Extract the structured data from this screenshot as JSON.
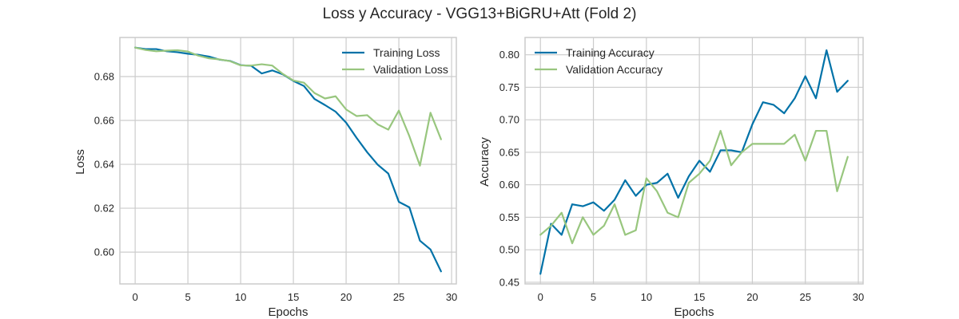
{
  "figure": {
    "title": "Loss y Accuracy - VGG13+BiGRU+Att (Fold 2)"
  },
  "colors": {
    "training": "#0072a8",
    "validation": "#98c67e",
    "grid": "#cccccc",
    "background": "#ffffff"
  },
  "chart_data": [
    {
      "type": "line",
      "title": "",
      "xlabel": "Epochs",
      "ylabel": "Loss",
      "xlim": [
        -1.45,
        30.45
      ],
      "ylim": [
        0.5855,
        0.6978
      ],
      "xticks": [
        0,
        5,
        10,
        15,
        20,
        25,
        30
      ],
      "xtick_labels": [
        "0",
        "5",
        "10",
        "15",
        "20",
        "25",
        "30"
      ],
      "yticks": [
        0.6,
        0.62,
        0.64,
        0.66,
        0.68
      ],
      "ytick_labels": [
        "0.60",
        "0.62",
        "0.64",
        "0.66",
        "0.68"
      ],
      "grid": true,
      "legend_position": "top-right",
      "x": [
        0,
        1,
        2,
        3,
        4,
        5,
        6,
        7,
        8,
        9,
        10,
        11,
        12,
        13,
        14,
        15,
        16,
        17,
        18,
        19,
        20,
        21,
        22,
        23,
        24,
        25,
        26,
        27,
        28,
        29
      ],
      "series": [
        {
          "name": "Training Loss",
          "color": "#0072a8",
          "values": [
            0.6932,
            0.6925,
            0.6925,
            0.6915,
            0.6911,
            0.6904,
            0.6899,
            0.6891,
            0.6877,
            0.6871,
            0.6852,
            0.6849,
            0.6814,
            0.6828,
            0.681,
            0.678,
            0.6757,
            0.6698,
            0.667,
            0.664,
            0.659,
            0.652,
            0.6455,
            0.6398,
            0.6358,
            0.6229,
            0.6204,
            0.6052,
            0.6012,
            0.5912
          ]
        },
        {
          "name": "Validation Loss",
          "color": "#98c67e",
          "values": [
            0.6932,
            0.6921,
            0.6915,
            0.6918,
            0.692,
            0.6914,
            0.6895,
            0.6883,
            0.6878,
            0.687,
            0.6851,
            0.685,
            0.6856,
            0.685,
            0.6812,
            0.6782,
            0.6772,
            0.6725,
            0.67,
            0.671,
            0.665,
            0.662,
            0.6624,
            0.6582,
            0.6558,
            0.6645,
            0.6528,
            0.6394,
            0.6635,
            0.6514
          ]
        }
      ]
    },
    {
      "type": "line",
      "title": "",
      "xlabel": "Epochs",
      "ylabel": "Accuracy",
      "xlim": [
        -1.45,
        30.45
      ],
      "ylim": [
        0.4475,
        0.8266
      ],
      "xticks": [
        0,
        5,
        10,
        15,
        20,
        25,
        30
      ],
      "xtick_labels": [
        "0",
        "5",
        "10",
        "15",
        "20",
        "25",
        "30"
      ],
      "yticks": [
        0.45,
        0.5,
        0.55,
        0.6,
        0.65,
        0.7,
        0.75,
        0.8
      ],
      "ytick_labels": [
        "0.45",
        "0.50",
        "0.55",
        "0.60",
        "0.65",
        "0.70",
        "0.75",
        "0.80"
      ],
      "grid": true,
      "legend_position": "top-left",
      "x": [
        0,
        1,
        2,
        3,
        4,
        5,
        6,
        7,
        8,
        9,
        10,
        11,
        12,
        13,
        14,
        15,
        16,
        17,
        18,
        19,
        20,
        21,
        22,
        23,
        24,
        25,
        26,
        27,
        28,
        29
      ],
      "series": [
        {
          "name": "Training Accuracy",
          "color": "#0072a8",
          "values": [
            0.463,
            0.54,
            0.523,
            0.57,
            0.567,
            0.573,
            0.56,
            0.577,
            0.607,
            0.583,
            0.6,
            0.603,
            0.617,
            0.58,
            0.613,
            0.637,
            0.62,
            0.653,
            0.653,
            0.65,
            0.693,
            0.727,
            0.723,
            0.71,
            0.733,
            0.767,
            0.733,
            0.807,
            0.743,
            0.76
          ]
        },
        {
          "name": "Validation Accuracy",
          "color": "#98c67e",
          "values": [
            0.523,
            0.537,
            0.557,
            0.51,
            0.55,
            0.523,
            0.537,
            0.57,
            0.523,
            0.53,
            0.61,
            0.59,
            0.557,
            0.55,
            0.603,
            0.617,
            0.637,
            0.683,
            0.63,
            0.65,
            0.663,
            0.663,
            0.663,
            0.663,
            0.677,
            0.637,
            0.683,
            0.683,
            0.59,
            0.643
          ]
        }
      ]
    }
  ]
}
